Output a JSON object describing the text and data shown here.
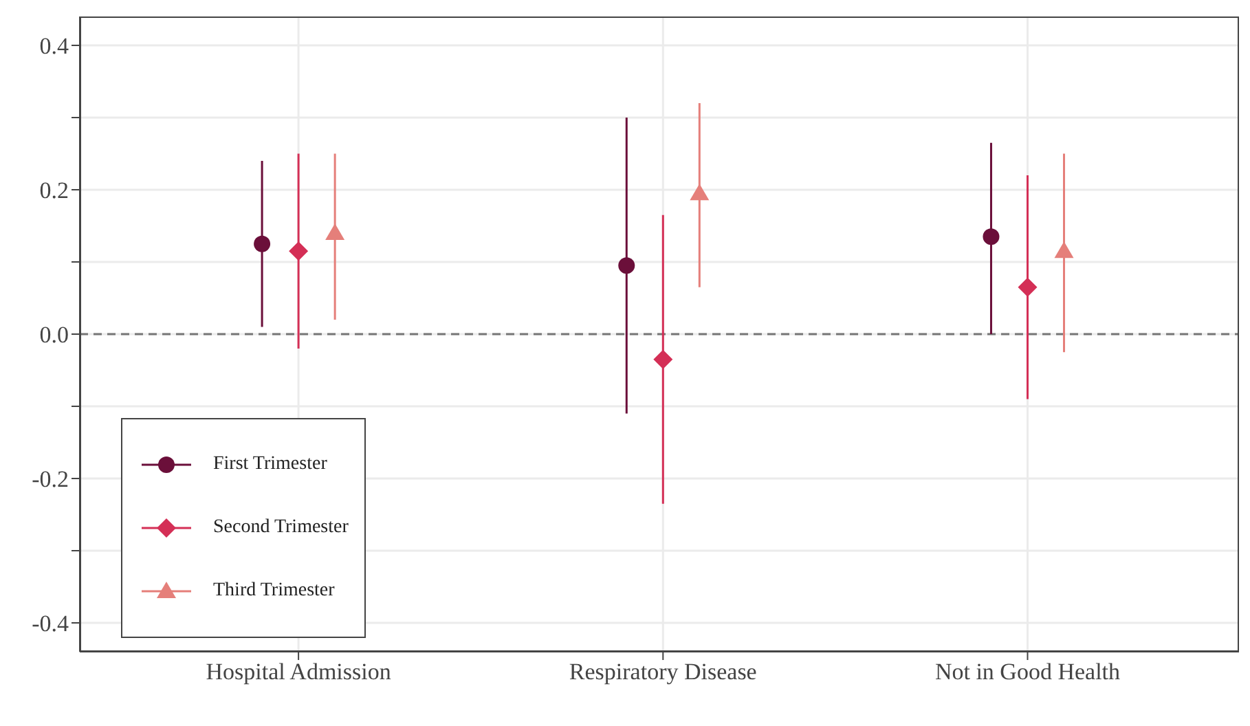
{
  "chart_data": {
    "type": "scatter",
    "categories": [
      "Hospital Admission",
      "Respiratory Disease",
      "Not in Good Health"
    ],
    "series": [
      {
        "name": "First Trimester",
        "color": "#6b0f3a",
        "marker": "circle",
        "values": [
          0.125,
          0.095,
          0.135
        ],
        "errors": [
          [
            0.01,
            0.24
          ],
          [
            -0.11,
            0.3
          ],
          [
            0.0,
            0.265
          ]
        ]
      },
      {
        "name": "Second Trimester",
        "color": "#d42f56",
        "marker": "diamond",
        "values": [
          0.115,
          -0.035,
          0.065
        ],
        "errors": [
          [
            -0.02,
            0.25
          ],
          [
            -0.235,
            0.165
          ],
          [
            -0.09,
            0.22
          ]
        ]
      },
      {
        "name": "Third Trimester",
        "color": "#e57f7a",
        "marker": "triangle",
        "values": [
          0.14,
          0.195,
          0.115
        ],
        "errors": [
          [
            0.02,
            0.25
          ],
          [
            0.065,
            0.32
          ],
          [
            -0.025,
            0.25
          ]
        ]
      }
    ],
    "ylim": [
      -0.44,
      0.44
    ],
    "yticks": [
      -0.4,
      {
        "value": -0.3,
        "label": null
      },
      -0.2,
      {
        "value": -0.1,
        "label": null
      },
      {
        "value": 0,
        "label": "0.0"
      },
      {
        "value": 0.1,
        "label": null
      },
      0.2,
      {
        "value": 0.3,
        "label": null
      },
      0.4
    ],
    "grid": true,
    "legend": "bottom left",
    "ref_lines": [
      {
        "axis": "y",
        "value": 0,
        "color": "#777777",
        "line_style": "dashed"
      }
    ]
  }
}
